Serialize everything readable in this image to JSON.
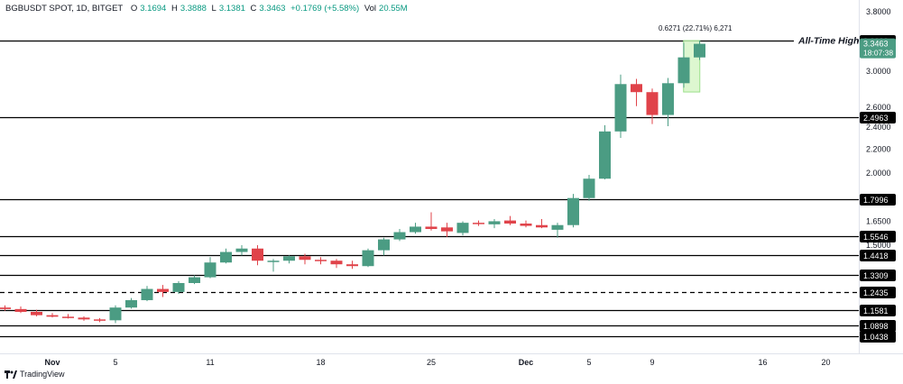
{
  "header": {
    "pair": "BGBUSDT SPOT, 1D, BITGET",
    "open_label": "O",
    "open": "3.1694",
    "high_label": "H",
    "high": "3.3888",
    "low_label": "L",
    "low": "3.1381",
    "close_label": "C",
    "close": "3.3463",
    "change": "+0.1769 (+5.58%)",
    "vol_label": "Vol",
    "vol": "20.55M"
  },
  "branding": {
    "text": "TradingView"
  },
  "colors": {
    "up": "#4b9c83",
    "down": "#e0434a",
    "line": "#000000",
    "grid_text": "#131722",
    "measure_fill": "#d4f5c4",
    "measure_stroke": "#9be08a"
  },
  "chart_data": {
    "type": "candlestick",
    "y_scale": "log",
    "ylim": [
      1.0,
      3.9
    ],
    "y_ticks": [
      3.8,
      3.0,
      2.6,
      2.4,
      2.2,
      2.0,
      1.65,
      1.5
    ],
    "y_tick_labels": [
      "3.8000",
      "3.0000",
      "2.6000",
      "2.4000",
      "2.2000",
      "2.0000",
      "1.6500",
      "1.5000"
    ],
    "x_tick_labels": [
      {
        "day": 0,
        "label": "Nov"
      },
      {
        "day": 4,
        "label": "5"
      },
      {
        "day": 10,
        "label": "11"
      },
      {
        "day": 17,
        "label": "18"
      },
      {
        "day": 24,
        "label": "25"
      },
      {
        "day": 30,
        "label": "Dec"
      },
      {
        "day": 34,
        "label": "5"
      },
      {
        "day": 38,
        "label": "9"
      },
      {
        "day": 45,
        "label": "16"
      },
      {
        "day": 49,
        "label": "20"
      }
    ],
    "candles": [
      {
        "day": -3,
        "o": 1.17,
        "h": 1.18,
        "l": 1.155,
        "c": 1.163
      },
      {
        "day": -2,
        "o": 1.163,
        "h": 1.175,
        "l": 1.145,
        "c": 1.15
      },
      {
        "day": -1,
        "o": 1.15,
        "h": 1.16,
        "l": 1.13,
        "c": 1.135
      },
      {
        "day": 0,
        "o": 1.135,
        "h": 1.145,
        "l": 1.125,
        "c": 1.128
      },
      {
        "day": 1,
        "o": 1.128,
        "h": 1.14,
        "l": 1.12,
        "c": 1.124
      },
      {
        "day": 2,
        "o": 1.124,
        "h": 1.13,
        "l": 1.11,
        "c": 1.116
      },
      {
        "day": 3,
        "o": 1.116,
        "h": 1.122,
        "l": 1.104,
        "c": 1.112
      },
      {
        "day": 4,
        "o": 1.112,
        "h": 1.18,
        "l": 1.1,
        "c": 1.17
      },
      {
        "day": 5,
        "o": 1.17,
        "h": 1.215,
        "l": 1.165,
        "c": 1.205
      },
      {
        "day": 6,
        "o": 1.205,
        "h": 1.275,
        "l": 1.2,
        "c": 1.26
      },
      {
        "day": 7,
        "o": 1.26,
        "h": 1.28,
        "l": 1.22,
        "c": 1.245
      },
      {
        "day": 8,
        "o": 1.245,
        "h": 1.3,
        "l": 1.235,
        "c": 1.29
      },
      {
        "day": 9,
        "o": 1.29,
        "h": 1.33,
        "l": 1.285,
        "c": 1.32
      },
      {
        "day": 10,
        "o": 1.32,
        "h": 1.43,
        "l": 1.315,
        "c": 1.4
      },
      {
        "day": 11,
        "o": 1.4,
        "h": 1.48,
        "l": 1.395,
        "c": 1.46
      },
      {
        "day": 12,
        "o": 1.46,
        "h": 1.5,
        "l": 1.44,
        "c": 1.48
      },
      {
        "day": 13,
        "o": 1.48,
        "h": 1.5,
        "l": 1.385,
        "c": 1.41
      },
      {
        "day": 14,
        "o": 1.405,
        "h": 1.42,
        "l": 1.35,
        "c": 1.41
      },
      {
        "day": 15,
        "o": 1.41,
        "h": 1.44,
        "l": 1.395,
        "c": 1.435
      },
      {
        "day": 16,
        "o": 1.435,
        "h": 1.45,
        "l": 1.39,
        "c": 1.415
      },
      {
        "day": 17,
        "o": 1.415,
        "h": 1.43,
        "l": 1.39,
        "c": 1.41
      },
      {
        "day": 18,
        "o": 1.41,
        "h": 1.42,
        "l": 1.37,
        "c": 1.39
      },
      {
        "day": 19,
        "o": 1.39,
        "h": 1.41,
        "l": 1.365,
        "c": 1.38
      },
      {
        "day": 20,
        "o": 1.38,
        "h": 1.48,
        "l": 1.375,
        "c": 1.47
      },
      {
        "day": 21,
        "o": 1.47,
        "h": 1.545,
        "l": 1.44,
        "c": 1.535
      },
      {
        "day": 22,
        "o": 1.535,
        "h": 1.6,
        "l": 1.525,
        "c": 1.58
      },
      {
        "day": 23,
        "o": 1.58,
        "h": 1.64,
        "l": 1.57,
        "c": 1.615
      },
      {
        "day": 24,
        "o": 1.615,
        "h": 1.71,
        "l": 1.59,
        "c": 1.6
      },
      {
        "day": 25,
        "o": 1.61,
        "h": 1.64,
        "l": 1.55,
        "c": 1.585
      },
      {
        "day": 26,
        "o": 1.575,
        "h": 1.65,
        "l": 1.56,
        "c": 1.64
      },
      {
        "day": 27,
        "o": 1.64,
        "h": 1.655,
        "l": 1.62,
        "c": 1.635
      },
      {
        "day": 28,
        "o": 1.63,
        "h": 1.665,
        "l": 1.605,
        "c": 1.65
      },
      {
        "day": 29,
        "o": 1.655,
        "h": 1.685,
        "l": 1.625,
        "c": 1.635
      },
      {
        "day": 30,
        "o": 1.635,
        "h": 1.655,
        "l": 1.61,
        "c": 1.62
      },
      {
        "day": 31,
        "o": 1.625,
        "h": 1.665,
        "l": 1.605,
        "c": 1.61
      },
      {
        "day": 32,
        "o": 1.595,
        "h": 1.64,
        "l": 1.545,
        "c": 1.625
      },
      {
        "day": 33,
        "o": 1.625,
        "h": 1.84,
        "l": 1.61,
        "c": 1.81
      },
      {
        "day": 34,
        "o": 1.81,
        "h": 1.985,
        "l": 1.79,
        "c": 1.955
      },
      {
        "day": 35,
        "o": 1.955,
        "h": 2.42,
        "l": 1.95,
        "c": 2.36
      },
      {
        "day": 36,
        "o": 2.36,
        "h": 2.96,
        "l": 2.3,
        "c": 2.85
      },
      {
        "day": 37,
        "o": 2.85,
        "h": 2.91,
        "l": 2.61,
        "c": 2.76
      },
      {
        "day": 38,
        "o": 2.76,
        "h": 2.8,
        "l": 2.43,
        "c": 2.52
      },
      {
        "day": 39,
        "o": 2.52,
        "h": 2.92,
        "l": 2.41,
        "c": 2.86
      },
      {
        "day": 40,
        "o": 2.86,
        "h": 3.36,
        "l": 2.81,
        "c": 3.17
      },
      {
        "day": 41,
        "o": 3.1694,
        "h": 3.3888,
        "l": 3.1381,
        "c": 3.3463
      }
    ],
    "horizontal_lines": [
      {
        "value": 3.3888,
        "style": "solid",
        "label": "3.3888"
      },
      {
        "value": 2.4963,
        "style": "solid",
        "label": "2.4963"
      },
      {
        "value": 1.7996,
        "style": "solid",
        "label": "1.7996"
      },
      {
        "value": 1.5546,
        "style": "solid",
        "label": "1.5546"
      },
      {
        "value": 1.4418,
        "style": "solid",
        "label": "1.4418"
      },
      {
        "value": 1.3309,
        "style": "solid",
        "label": "1.3309"
      },
      {
        "value": 1.2435,
        "style": "dashed",
        "label": "1.2435"
      },
      {
        "value": 1.1581,
        "style": "solid",
        "label": "1.1581"
      },
      {
        "value": 1.0898,
        "style": "solid",
        "label": "1.0898"
      },
      {
        "value": 1.0438,
        "style": "solid",
        "label": "1.0438"
      }
    ],
    "annotation": {
      "text": "All-Time High",
      "value": 3.3888
    },
    "measure": {
      "text": "0.6271 (22.71%) 6,271",
      "from": 2.7617,
      "to": 3.3888,
      "day": 40.5
    },
    "last_price_badge": {
      "price": "3.3463",
      "countdown": "18:07:38"
    }
  }
}
